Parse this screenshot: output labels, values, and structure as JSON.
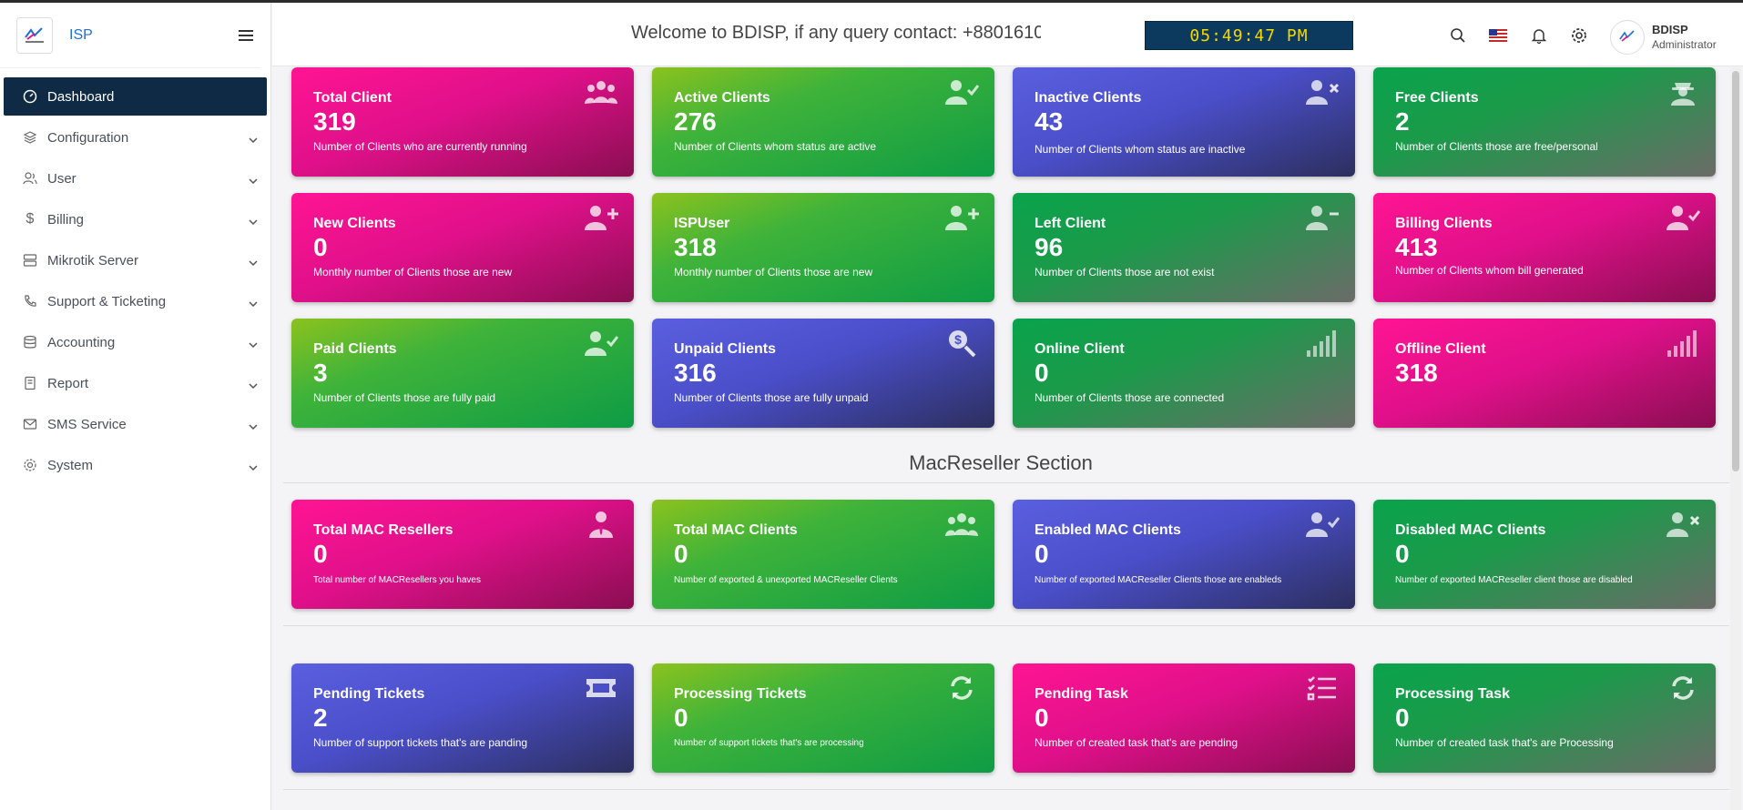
{
  "brand": {
    "name": "ISP"
  },
  "sidebar": {
    "items": [
      {
        "label": "Dashboard",
        "icon": "dashboard-icon"
      },
      {
        "label": "Configuration",
        "icon": "gear-icon"
      },
      {
        "label": "User",
        "icon": "users-icon"
      },
      {
        "label": "Billing",
        "icon": "dollar-icon"
      },
      {
        "label": "Mikrotik Server",
        "icon": "server-icon"
      },
      {
        "label": "Support & Ticketing",
        "icon": "phone-icon"
      },
      {
        "label": "Accounting",
        "icon": "database-icon"
      },
      {
        "label": "Report",
        "icon": "report-icon"
      },
      {
        "label": "SMS Service",
        "icon": "mail-icon"
      },
      {
        "label": "System",
        "icon": "gear-icon"
      }
    ]
  },
  "header": {
    "marquee": "Welcome to BDISP, if any query contact: +8801610C",
    "clock": "05:49:47 PM",
    "user_name": "BDISP",
    "user_role": "Administrator"
  },
  "cards": [
    {
      "title": "Total Client",
      "value": "319",
      "desc": "Number of Clients who are currently running"
    },
    {
      "title": "Active Clients",
      "value": "276",
      "desc": "Number of Clients whom status are active"
    },
    {
      "title": "Inactive Clients",
      "value": "43",
      "desc": "Number of Clients whom status are inactive"
    },
    {
      "title": "Free Clients",
      "value": "2",
      "desc": "Number of Clients those are free/personal"
    },
    {
      "title": "New Clients",
      "value": "0",
      "desc": "Monthly number of Clients those are new"
    },
    {
      "title": "ISPUser",
      "value": "318",
      "desc": "Monthly number of Clients those are new"
    },
    {
      "title": "Left Client",
      "value": "96",
      "desc": "Number of Clients those are not exist"
    },
    {
      "title": "Billing Clients",
      "value": "413",
      "desc": "Number of Clients whom bill generated"
    },
    {
      "title": "Paid Clients",
      "value": "3",
      "desc": "Number of Clients those are fully paid"
    },
    {
      "title": "Unpaid Clients",
      "value": "316",
      "desc": "Number of Clients those are fully unpaid"
    },
    {
      "title": "Online Client",
      "value": "0",
      "desc": "Number of Clients those are connected"
    },
    {
      "title": "Offline Client",
      "value": "318",
      "desc": ""
    }
  ],
  "mac_section": {
    "title": "MacReseller Section",
    "cards": [
      {
        "title": "Total MAC Resellers",
        "value": "0",
        "desc": "Total number of MACResellers you haves"
      },
      {
        "title": "Total MAC Clients",
        "value": "0",
        "desc": "Number of exported & unexported MACReseller Clients"
      },
      {
        "title": "Enabled MAC Clients",
        "value": "0",
        "desc": "Number of exported MACReseller Clients those are enableds"
      },
      {
        "title": "Disabled MAC Clients",
        "value": "0",
        "desc": "Number of exported MACReseller client those are disabled"
      }
    ]
  },
  "ticket_cards": [
    {
      "title": "Pending Tickets",
      "value": "2",
      "desc": "Number of support tickets that's are panding"
    },
    {
      "title": "Processing Tickets",
      "value": "0",
      "desc": "Number of support tickets that's are processing"
    },
    {
      "title": "Pending Task",
      "value": "0",
      "desc": "Number of created task that's are pending"
    },
    {
      "title": "Processing Task",
      "value": "0",
      "desc": "Number of created task that's are Processing"
    }
  ],
  "colors": {
    "pink": "#e0108a",
    "green": "#3fb33a",
    "blue": "#4a4ec8",
    "navy_active": "#0f2a44",
    "clock_text": "#f5d800"
  }
}
